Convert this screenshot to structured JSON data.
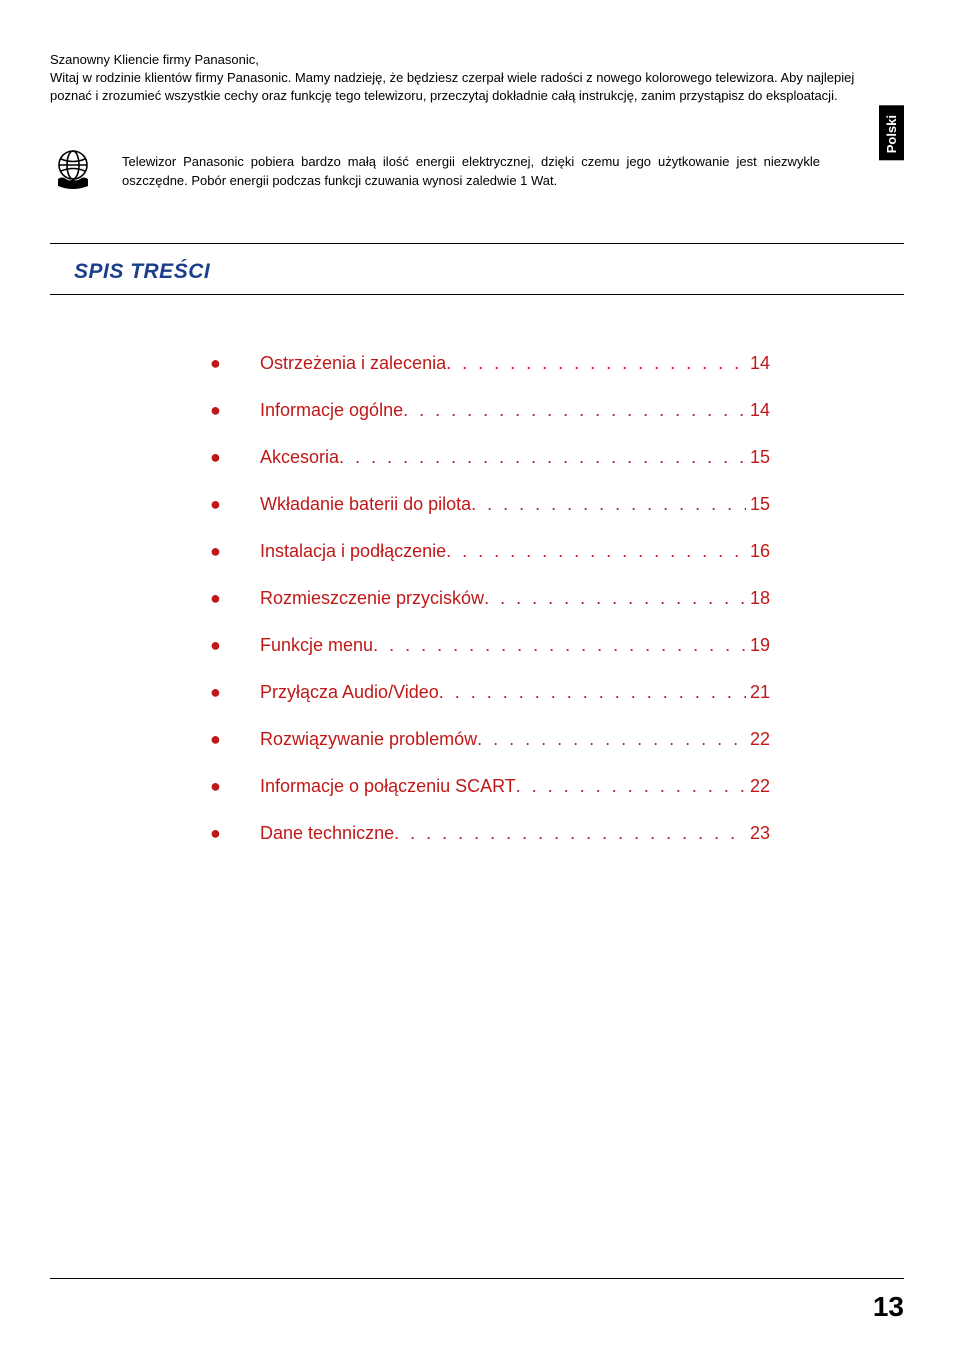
{
  "colors": {
    "text": "#000000",
    "title": "#1a3e8c",
    "toc_bullet": "#c01818",
    "toc_text": "#c01818",
    "background": "#ffffff",
    "tab_bg": "#000000",
    "tab_text": "#ffffff"
  },
  "intro": {
    "greeting": "Szanowny Kliencie firmy Panasonic,",
    "body": "Witaj w rodzinie klientów firmy Panasonic. Mamy nadzieję, że będziesz czerpał wiele radości z nowego kolorowego telewizora. Aby najlepiej poznać i zrozumieć wszystkie cechy oraz funkcję tego telewizoru, przeczytaj dokładnie całą instrukcję, zanim przystąpisz do eksploatacji."
  },
  "language_tab": "Polski",
  "eco": {
    "icon": "globe-hands-icon",
    "text": "Telewizor Panasonic pobiera bardzo małą ilość energii elektrycznej, dzięki czemu jego użytkowanie jest niezwykle oszczędne. Pobór energii podczas funkcji czuwania wynosi zaledwie 1 Wat."
  },
  "section_title": "SPIS TREŚCI",
  "toc": [
    {
      "label": "Ostrzeżenia i zalecenia",
      "page": "14"
    },
    {
      "label": "Informacje ogólne",
      "page": "14"
    },
    {
      "label": "Akcesoria",
      "page": "15"
    },
    {
      "label": "Wkładanie baterii do pilota",
      "page": "15"
    },
    {
      "label": "Instalacja i podłączenie",
      "page": "16"
    },
    {
      "label": "Rozmieszczenie przycisków",
      "page": "18"
    },
    {
      "label": "Funkcje menu",
      "page": "19"
    },
    {
      "label": "Przyłącza Audio/Video",
      "page": "21"
    },
    {
      "label": "Rozwiązywanie problemów",
      "page": "22"
    },
    {
      "label": "Informacje o połączeniu SCART",
      "page": "22"
    },
    {
      "label": "Dane techniczne",
      "page": "23"
    }
  ],
  "page_number": "13"
}
